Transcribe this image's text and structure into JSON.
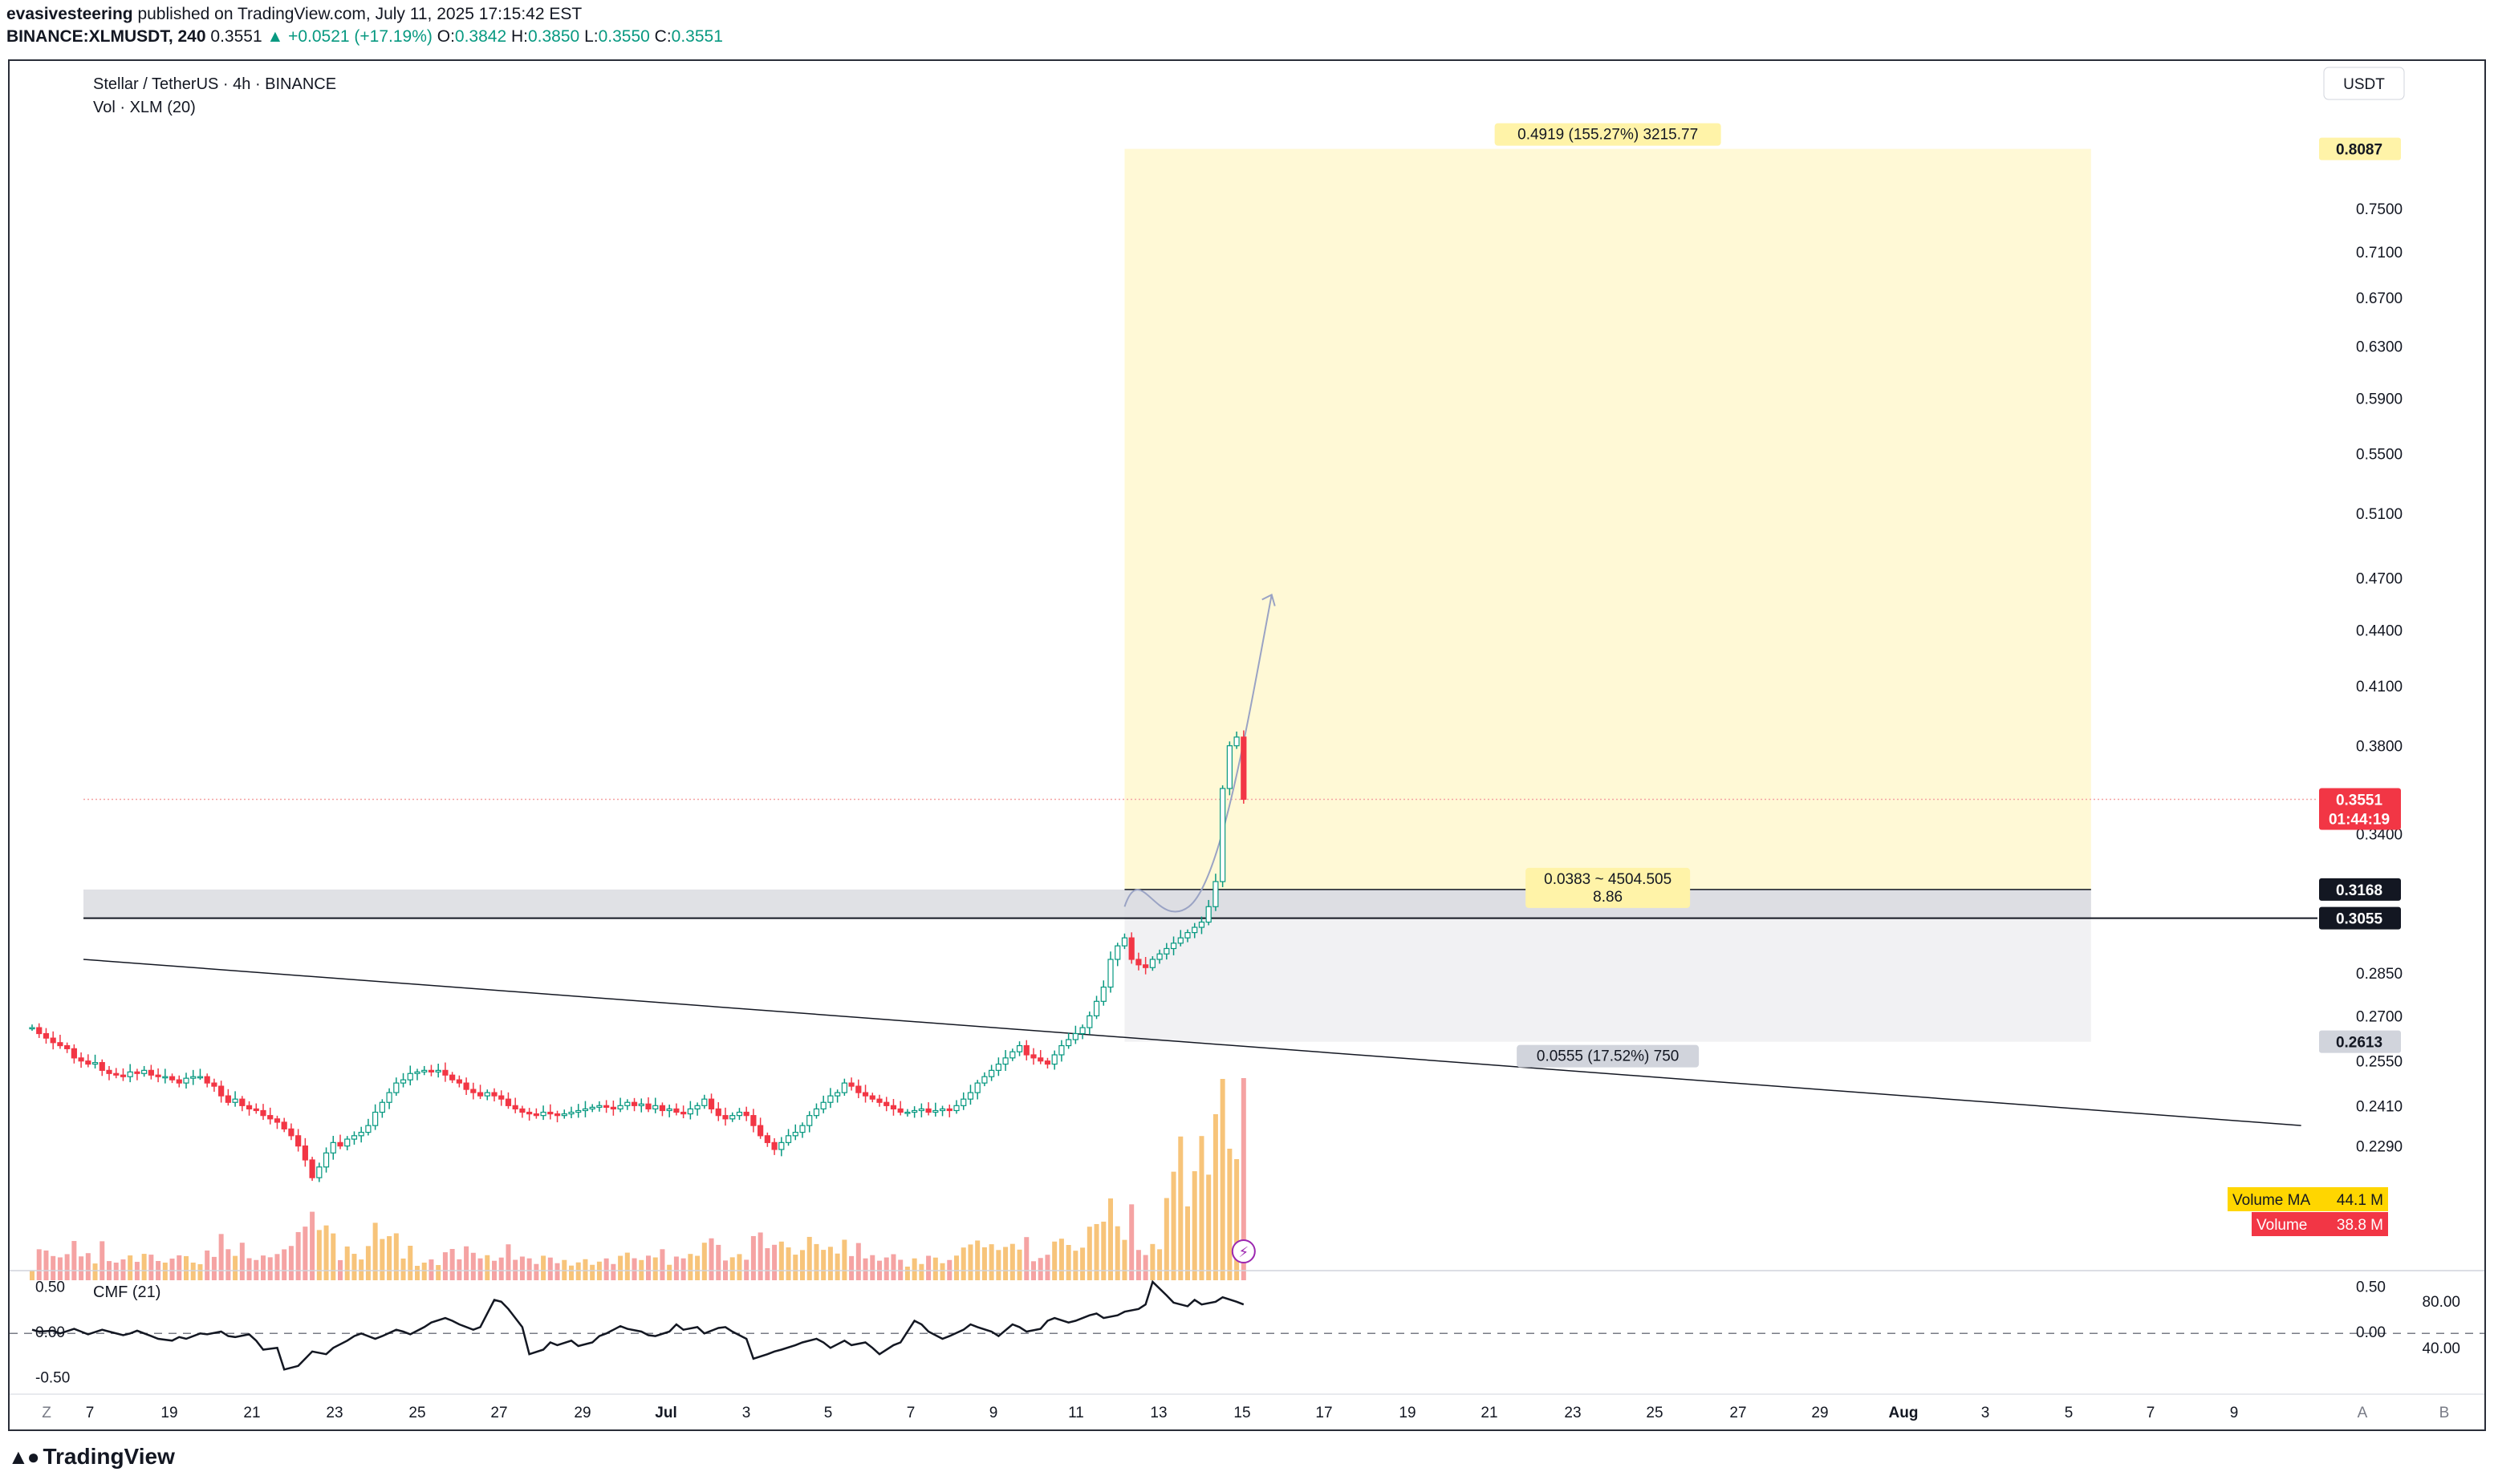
{
  "header": {
    "line1_user": "evasivesteering",
    "line1_rest": " published on TradingView.com, July 11, 2025 17:15:42 EST",
    "symbol": "BINANCE:XLMUSDT, 240",
    "last": "0.3551",
    "change": "▲ +0.0521 (+17.19%)",
    "o_label": "O:",
    "o": "0.3842",
    "h_label": "H:",
    "h": "0.3850",
    "l_label": "L:",
    "l": "0.3550",
    "c_label": "C:",
    "c": "0.3551"
  },
  "legend": {
    "title": "Stellar / TetherUS · 4h · BINANCE",
    "volume": "Vol · XLM (20)",
    "cmf": "CMF (21)"
  },
  "footer": {
    "brand": "TradingView"
  },
  "colors": {
    "up": "#089981",
    "down": "#f23645",
    "profit_zone": "#fff9d6",
    "stop_zone": "#ececef",
    "vol_up": "#f7c47a",
    "vol_down": "#f5a3a3",
    "vol_ma_badge": "#ffd600",
    "price_badge": "#f23645"
  },
  "chart_data": {
    "type": "candlestick",
    "symbol": "XLMUSDT",
    "timeframe": "4h",
    "price_axis": {
      "scale": "log",
      "unit": "USDT",
      "ylim": [
        0.213,
        0.83
      ],
      "ticks": [
        "0.7500",
        "0.7100",
        "0.6700",
        "0.6300",
        "0.5900",
        "0.5500",
        "0.5100",
        "0.4700",
        "0.4400",
        "0.4100",
        "0.3800",
        "0.3400",
        "0.2850",
        "0.2700",
        "0.2550",
        "0.2410",
        "0.2290"
      ],
      "labels": {
        "currency": "USDT",
        "target": "0.8087",
        "last_price": "0.3551",
        "countdown": "01:44:19",
        "entry": "0.3168",
        "level": "0.3055",
        "stop": "0.2613"
      },
      "last_price": 0.3551,
      "entry": 0.3168,
      "level": 0.3055,
      "stop": 0.2613,
      "target": 0.8087
    },
    "time_axis": {
      "labels": [
        "Z",
        "7",
        "19",
        "21",
        "23",
        "25",
        "27",
        "29",
        "Jul",
        "3",
        "5",
        "7",
        "9",
        "11",
        "13",
        "15",
        "17",
        "19",
        "21",
        "23",
        "25",
        "27",
        "29",
        "Aug",
        "3",
        "5",
        "7",
        "9",
        "A",
        "B"
      ],
      "range_days": [
        "2025-06-16",
        "2025-08-10"
      ]
    },
    "candles": {
      "start": "2025-06-16T00:00",
      "interval_hours": 4,
      "closes": [
        0.266,
        0.264,
        0.2625,
        0.261,
        0.26,
        0.259,
        0.256,
        0.255,
        0.254,
        0.2545,
        0.252,
        0.251,
        0.2505,
        0.25,
        0.2515,
        0.251,
        0.252,
        0.2505,
        0.25,
        0.25,
        0.249,
        0.248,
        0.2495,
        0.25,
        0.25,
        0.248,
        0.247,
        0.244,
        0.242,
        0.243,
        0.241,
        0.24,
        0.2395,
        0.238,
        0.237,
        0.236,
        0.234,
        0.232,
        0.229,
        0.225,
        0.22,
        0.223,
        0.227,
        0.23,
        0.229,
        0.231,
        0.232,
        0.233,
        0.235,
        0.239,
        0.242,
        0.245,
        0.248,
        0.249,
        0.251,
        0.2515,
        0.252,
        0.2515,
        0.252,
        0.2505,
        0.249,
        0.248,
        0.246,
        0.245,
        0.244,
        0.245,
        0.244,
        0.243,
        0.241,
        0.24,
        0.239,
        0.2385,
        0.238,
        0.239,
        0.2385,
        0.238,
        0.2385,
        0.239,
        0.2395,
        0.24,
        0.2405,
        0.241,
        0.2405,
        0.24,
        0.241,
        0.242,
        0.241,
        0.2415,
        0.24,
        0.241,
        0.2395,
        0.24,
        0.239,
        0.2385,
        0.24,
        0.241,
        0.243,
        0.24,
        0.238,
        0.237,
        0.238,
        0.239,
        0.238,
        0.235,
        0.232,
        0.23,
        0.228,
        0.23,
        0.232,
        0.233,
        0.235,
        0.238,
        0.24,
        0.242,
        0.244,
        0.245,
        0.248,
        0.247,
        0.245,
        0.244,
        0.243,
        0.242,
        0.241,
        0.24,
        0.239,
        0.239,
        0.2395,
        0.24,
        0.239,
        0.2395,
        0.24,
        0.2395,
        0.241,
        0.243,
        0.245,
        0.248,
        0.25,
        0.252,
        0.254,
        0.256,
        0.258,
        0.26,
        0.257,
        0.256,
        0.255,
        0.254,
        0.257,
        0.26,
        0.262,
        0.264,
        0.266,
        0.27,
        0.275,
        0.28,
        0.29,
        0.295,
        0.298,
        0.29,
        0.288,
        0.287,
        0.29,
        0.292,
        0.294,
        0.296,
        0.298,
        0.3,
        0.302,
        0.304,
        0.31,
        0.32,
        0.36,
        0.38,
        0.3842,
        0.3551
      ]
    },
    "volume": {
      "series": "Volume",
      "ma_period": 20,
      "labels": {
        "ma": "Volume MA",
        "ma_value": "44.1 M",
        "vol": "Volume",
        "vol_value": "38.8 M"
      },
      "last_ma": 44.1,
      "last": 38.8,
      "unit": "M XLM"
    },
    "cmf": {
      "period": 21,
      "axis_left": [
        "0.50",
        "0.00",
        "-0.50"
      ],
      "axis_right": [
        "0.50",
        "0.00"
      ],
      "axis_right_outer": [
        "80.00",
        "40.00"
      ],
      "ylim": [
        -0.55,
        0.55
      ],
      "values": [
        0.02,
        0.0,
        0.01,
        -0.02,
        0.03,
        0.0,
        -0.03,
        0.02,
        0.0,
        -0.04,
        -0.02,
        0.01,
        -0.05,
        -0.08,
        -0.1,
        -0.06,
        -0.08,
        -0.02,
        -0.03,
        0.0,
        -0.05,
        -0.06,
        -0.03,
        -0.1,
        -0.2,
        -0.18,
        -0.42,
        -0.38,
        -0.3,
        -0.22,
        -0.25,
        -0.18,
        -0.1,
        -0.05,
        -0.02,
        -0.08,
        -0.05,
        0.02,
        0.0,
        -0.03,
        0.05,
        0.1,
        0.15,
        0.12,
        0.08,
        0.02,
        0.05,
        0.35,
        0.33,
        0.25,
        0.05,
        -0.25,
        -0.2,
        -0.12,
        -0.15,
        -0.1,
        -0.16,
        -0.12,
        -0.05,
        -0.02,
        0.06,
        0.03,
        0.0,
        -0.04,
        -0.05,
        0.0,
        0.08,
        0.02,
        0.05,
        -0.02,
        0.04,
        0.05,
        0.0,
        -0.08,
        -0.3,
        -0.25,
        -0.22,
        -0.2,
        -0.15,
        -0.12,
        -0.08,
        -0.12,
        -0.18,
        -0.1,
        -0.15,
        -0.12,
        -0.18,
        -0.25,
        -0.15,
        -0.12,
        0.12,
        0.08,
        0.0,
        -0.08,
        -0.05,
        0.02,
        0.08,
        0.05,
        0.0,
        -0.05,
        0.08,
        0.05,
        0.0,
        0.03,
        0.12,
        0.15,
        0.1,
        0.12,
        0.18,
        0.2,
        0.15,
        0.18,
        0.22,
        0.25,
        0.3,
        0.55,
        0.4,
        0.32,
        0.28,
        0.35,
        0.3,
        0.33,
        0.38,
        0.33,
        0.3
      ]
    },
    "position_tool": {
      "type": "long",
      "target_label": "0.4919 (155.27%) 3215.77",
      "entry_label_1": "0.0383 ~ 4504.505",
      "entry_label_2": "8.86",
      "stop_label": "0.0555 (17.52%) 750",
      "start": "2025-07-12T00:00",
      "end": "2025-08-04T00:00"
    },
    "trendline": {
      "from": [
        "2025-06-16T00:00",
        0.29
      ],
      "to": [
        "2025-08-09T00:00",
        0.235
      ]
    },
    "projection": {
      "from": [
        "2025-07-12T00:00",
        0.31
      ],
      "to": [
        "2025-07-15T12:00",
        0.46
      ]
    }
  }
}
